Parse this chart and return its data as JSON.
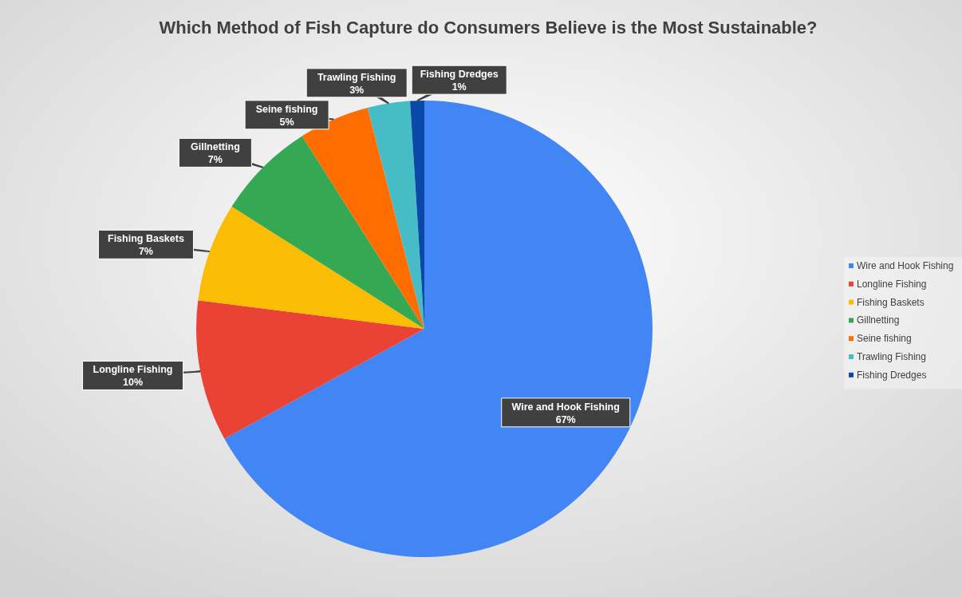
{
  "chart_data": {
    "type": "pie",
    "title": "Which Method of Fish Capture do Consumers Believe is the Most Sustainable?",
    "categories": [
      "Wire and Hook Fishing",
      "Longline Fishing",
      "Fishing Baskets",
      "Gillnetting",
      "Seine fishing",
      "Trawling Fishing",
      "Fishing Dredges"
    ],
    "values": [
      67,
      10,
      7,
      7,
      5,
      3,
      1
    ],
    "colors": [
      "#4285f4",
      "#ea4335",
      "#fbbc04",
      "#34a853",
      "#ff6d01",
      "#46bdc6",
      "#0b49a8"
    ],
    "value_labels": [
      "67%",
      "10%",
      "7%",
      "7%",
      "5%",
      "3%",
      "1%"
    ],
    "legend": "right"
  }
}
